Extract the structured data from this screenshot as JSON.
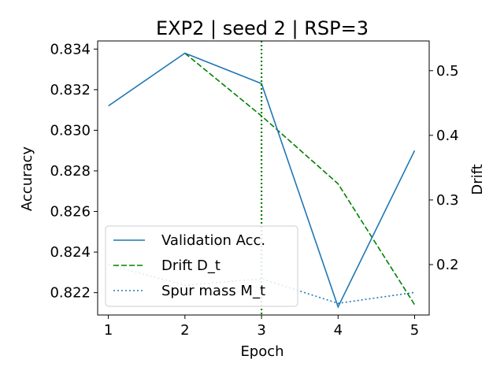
{
  "chart_data": {
    "type": "line",
    "title": "EXP2 | seed 2 | RSP=3",
    "xlabel": "Epoch",
    "ylabel_left": "Accuracy",
    "ylabel_right": "Drift",
    "x": [
      1,
      2,
      3,
      4,
      5
    ],
    "x_ticks": [
      "1",
      "2",
      "3",
      "4",
      "5"
    ],
    "xlim": [
      0.86,
      5.19
    ],
    "left_axis": {
      "ylim": [
        0.8209,
        0.8344
      ],
      "ticks": [
        0.822,
        0.824,
        0.826,
        0.828,
        0.83,
        0.832,
        0.834
      ],
      "tick_labels": [
        "0.822",
        "0.824",
        "0.826",
        "0.828",
        "0.830",
        "0.832",
        "0.834"
      ]
    },
    "right_axis": {
      "ylim": [
        0.122,
        0.546
      ],
      "ticks": [
        0.2,
        0.3,
        0.4,
        0.5
      ],
      "tick_labels": [
        "0.2",
        "0.3",
        "0.4",
        "0.5"
      ]
    },
    "series": [
      {
        "name": "Validation Acc.",
        "axis": "left",
        "style": "solid",
        "color": "#1f77b4",
        "x": [
          1,
          2,
          3,
          4,
          5
        ],
        "values": [
          0.8312,
          0.8338,
          0.8323,
          0.8213,
          0.829
        ]
      },
      {
        "name": "Drift D_t",
        "axis": "right",
        "style": "dashed",
        "color": "#008000",
        "x": [
          2,
          3,
          4,
          5
        ],
        "values": [
          0.527,
          0.43,
          0.325,
          0.138
        ]
      },
      {
        "name": "Spur mass M_t",
        "axis": "right",
        "style": "dotted",
        "color": "#1f77b4",
        "x": [
          1,
          2,
          3,
          4,
          5
        ],
        "values": [
          0.2,
          0.168,
          0.178,
          0.14,
          0.157
        ]
      }
    ],
    "vline": {
      "x": 3,
      "color": "#008000",
      "style": "dotted"
    },
    "legend": {
      "placement": "lower-left"
    }
  }
}
